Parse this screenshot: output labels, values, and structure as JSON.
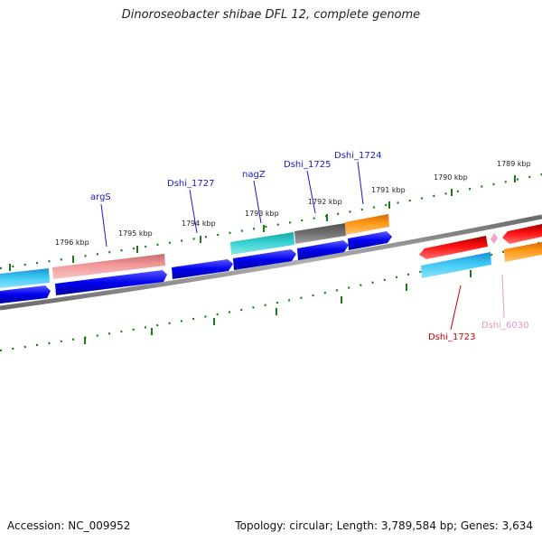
{
  "title": "Dinoroseobacter shibae DFL 12, complete genome",
  "footer": {
    "accession": "Accession: NC_009952",
    "topology": "Topology: circular; Length: 3,789,584 bp; Genes: 3,634"
  },
  "colors": {
    "backbone": "#8a8a8a",
    "tick": "#1a7a1a",
    "label_blue": "#1a1acc",
    "label_red": "#cc0000",
    "label_pink": "#e899c0"
  },
  "ticks": [
    {
      "label": "1796 kbp"
    },
    {
      "label": "1795 kbp"
    },
    {
      "label": "1794 kbp"
    },
    {
      "label": "1793 kbp"
    },
    {
      "label": "1792 kbp"
    },
    {
      "label": "1791 kbp"
    },
    {
      "label": "1790 kbp"
    },
    {
      "label": "1789 kbp"
    }
  ],
  "genes": [
    {
      "name": "argS",
      "color": "#1a1acc"
    },
    {
      "name": "Dshi_1727",
      "color": "#1a1acc"
    },
    {
      "name": "nagZ",
      "color": "#1a1acc"
    },
    {
      "name": "Dshi_1725",
      "color": "#1a1acc"
    },
    {
      "name": "Dshi_1724",
      "color": "#1a1acc"
    },
    {
      "name": "Dshi_1723",
      "color": "#cc0000"
    },
    {
      "name": "Dshi_6030",
      "color": "#e899c0"
    }
  ]
}
